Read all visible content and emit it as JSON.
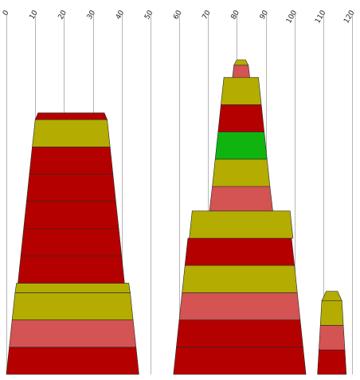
{
  "chart_data": {
    "type": "bar",
    "subtype": "stacked-tapered-columns",
    "title": "",
    "xlabel": "",
    "ylabel": "",
    "xlim": [
      0,
      120
    ],
    "x_ticks": [
      0,
      10,
      20,
      30,
      40,
      50,
      60,
      70,
      80,
      90,
      100,
      110,
      120
    ],
    "x_tick_labels": [
      "0",
      "10",
      "20",
      "30",
      "40",
      "50",
      "60",
      "70",
      "80",
      "90",
      "100",
      "110",
      "120"
    ],
    "tick_label_rotation": -60,
    "grid": true,
    "legend": "none",
    "colors": {
      "dark-red": "#b50000",
      "olive": "#b4ac00",
      "salmon": "#d45353",
      "green": "#0fb40f"
    },
    "stacks": [
      {
        "id": "left",
        "segments": [
          {
            "color": "dark-red",
            "height": 1,
            "x_bottom": [
              0,
              46
            ],
            "x_top": [
              1,
              45
            ]
          },
          {
            "color": "salmon",
            "height": 1,
            "x_bottom": [
              1,
              45
            ],
            "x_top": [
              2,
              44
            ]
          },
          {
            "color": "olive",
            "height": 1,
            "x_bottom": [
              2,
              44
            ],
            "x_top": [
              3,
              43
            ]
          },
          {
            "color": "olive",
            "height": 0.35,
            "x_bottom": [
              3,
              43
            ],
            "x_top": [
              3.5,
              42.5
            ]
          },
          {
            "color": "dark-red",
            "height": 1,
            "x_bottom": [
              4,
              41
            ],
            "x_top": [
              5,
              40
            ]
          },
          {
            "color": "dark-red",
            "height": 1,
            "x_bottom": [
              5,
              40
            ],
            "x_top": [
              6,
              39
            ]
          },
          {
            "color": "dark-red",
            "height": 1,
            "x_bottom": [
              6,
              39
            ],
            "x_top": [
              7,
              38
            ]
          },
          {
            "color": "dark-red",
            "height": 1,
            "x_bottom": [
              7,
              38
            ],
            "x_top": [
              8,
              37
            ]
          },
          {
            "color": "dark-red",
            "height": 1,
            "x_bottom": [
              8,
              37
            ],
            "x_top": [
              9,
              36
            ]
          },
          {
            "color": "olive",
            "height": 1,
            "x_bottom": [
              9,
              36
            ],
            "x_top": [
              10,
              35
            ]
          },
          {
            "color": "dark-red",
            "height": 0.25,
            "x_bottom": [
              10,
              35
            ],
            "x_top": [
              11,
              34
            ]
          }
        ]
      },
      {
        "id": "middle",
        "segments": [
          {
            "color": "dark-red",
            "height": 1,
            "x_bottom": [
              58,
              104
            ],
            "x_top": [
              59,
              103
            ]
          },
          {
            "color": "dark-red",
            "height": 1,
            "x_bottom": [
              59,
              103
            ],
            "x_top": [
              60,
              102
            ]
          },
          {
            "color": "salmon",
            "height": 1,
            "x_bottom": [
              60,
              102
            ],
            "x_top": [
              61,
              101
            ]
          },
          {
            "color": "olive",
            "height": 1,
            "x_bottom": [
              61,
              101
            ],
            "x_top": [
              62,
              100
            ]
          },
          {
            "color": "dark-red",
            "height": 1,
            "x_bottom": [
              62,
              100
            ],
            "x_top": [
              63,
              99
            ]
          },
          {
            "color": "olive",
            "height": 1,
            "x_bottom": [
              63.5,
              99.5
            ],
            "x_top": [
              64.5,
              98.5
            ]
          },
          {
            "color": "salmon",
            "height": 0.9,
            "x_bottom": [
              70.5,
              92.5
            ],
            "x_top": [
              71.5,
              91.5
            ]
          },
          {
            "color": "olive",
            "height": 1,
            "x_bottom": [
              71.5,
              91.5
            ],
            "x_top": [
              72.5,
              90.5
            ]
          },
          {
            "color": "green",
            "height": 1,
            "x_bottom": [
              72.5,
              90.5
            ],
            "x_top": [
              73.5,
              89.5
            ]
          },
          {
            "color": "dark-red",
            "height": 1,
            "x_bottom": [
              73.5,
              89.5
            ],
            "x_top": [
              74.5,
              88.5
            ]
          },
          {
            "color": "olive",
            "height": 1,
            "x_bottom": [
              74.5,
              88.5
            ],
            "x_top": [
              75.5,
              87.5
            ]
          },
          {
            "color": "salmon",
            "height": 0.45,
            "x_bottom": [
              78.5,
              84.5
            ],
            "x_top": [
              79,
              84
            ]
          },
          {
            "color": "olive",
            "height": 0.2,
            "x_bottom": [
              79,
              84
            ],
            "x_top": [
              80,
              83
            ]
          }
        ]
      },
      {
        "id": "right",
        "segments": [
          {
            "color": "dark-red",
            "height": 0.9,
            "x_bottom": [
              108,
              118
            ],
            "x_top": [
              108.5,
              117.5
            ]
          },
          {
            "color": "salmon",
            "height": 0.9,
            "x_bottom": [
              108.5,
              117.5
            ],
            "x_top": [
              109,
              117
            ]
          },
          {
            "color": "olive",
            "height": 0.9,
            "x_bottom": [
              109,
              117
            ],
            "x_top": [
              109.5,
              116.5
            ]
          },
          {
            "color": "olive",
            "height": 0.35,
            "x_bottom": [
              109.5,
              116.5
            ],
            "x_top": [
              111,
              115
            ]
          }
        ]
      }
    ]
  }
}
